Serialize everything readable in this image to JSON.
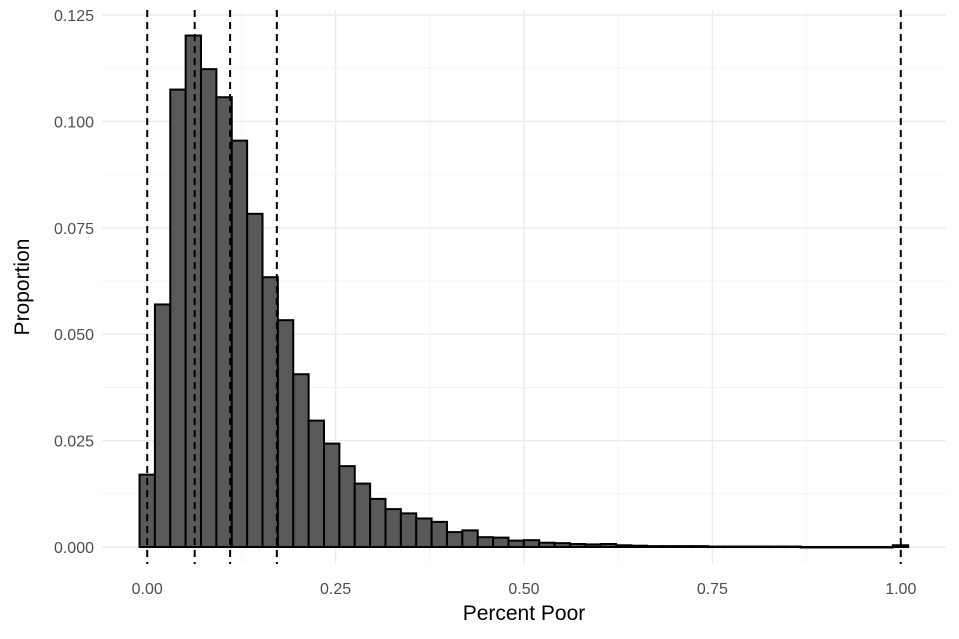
{
  "chart_data": {
    "type": "bar",
    "subtype": "histogram",
    "xlabel": "Percent Poor",
    "ylabel": "Proportion",
    "xlim": [
      -0.06,
      1.06
    ],
    "ylim": [
      -0.004,
      0.1262
    ],
    "x_ticks": [
      0.0,
      0.25,
      0.5,
      0.75,
      1.0
    ],
    "x_tick_labels": [
      "0.00",
      "0.25",
      "0.50",
      "0.75",
      "1.00"
    ],
    "y_ticks": [
      0.0,
      0.025,
      0.05,
      0.075,
      0.1,
      0.125
    ],
    "y_tick_labels": [
      "0.000",
      "0.025",
      "0.050",
      "0.075",
      "0.100",
      "0.125"
    ],
    "bin_width": 0.0204,
    "bin_start": -0.0102,
    "values": [
      0.017,
      0.057,
      0.1075,
      0.1202,
      0.1123,
      0.1057,
      0.0955,
      0.0783,
      0.0634,
      0.0533,
      0.0406,
      0.0297,
      0.0243,
      0.019,
      0.0149,
      0.0113,
      0.0089,
      0.0079,
      0.0067,
      0.0059,
      0.0035,
      0.0039,
      0.0023,
      0.0022,
      0.0015,
      0.0016,
      0.001,
      0.0009,
      0.0007,
      0.0006,
      0.0007,
      0.0004,
      0.0003,
      0.0002,
      0.0002,
      0.0002,
      0.0002,
      0.0001,
      0.0001,
      0.0001,
      0.0001,
      0.0001,
      0.0001,
      0.0,
      0.0,
      0.0,
      0.0,
      0.0,
      0.0,
      0.0004
    ],
    "vlines": [
      0.0,
      0.063,
      0.11,
      0.172,
      1.0
    ],
    "vline_style": "dashed",
    "bar_fill": "#595959",
    "bar_outline": "#000000",
    "grid": true,
    "background": "#ffffff"
  }
}
